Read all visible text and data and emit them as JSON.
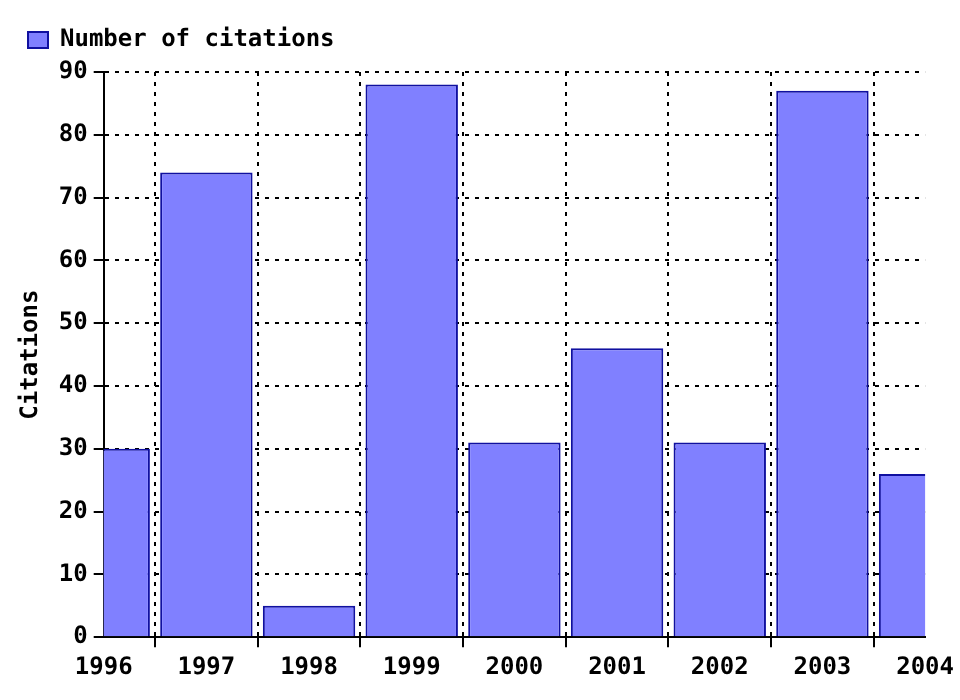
{
  "chart_data": {
    "type": "bar",
    "ylabel": "Citations",
    "x": [
      1996,
      1997,
      1998,
      1999,
      2000,
      2001,
      2002,
      2003,
      2004
    ],
    "series": [
      {
        "name": "Number of citations",
        "color": "#8080ff",
        "values": [
          30,
          74,
          5,
          88,
          31,
          46,
          31,
          87,
          26
        ]
      }
    ],
    "xlim": [
      1996,
      2004
    ],
    "xticks": [
      1996,
      1997,
      1998,
      1999,
      2000,
      2001,
      2002,
      2003,
      2004
    ],
    "ylim": [
      0,
      90
    ],
    "yticks": [
      0,
      10,
      20,
      30,
      40,
      50,
      60,
      70,
      80,
      90
    ],
    "grid": true,
    "legend": "top left"
  }
}
